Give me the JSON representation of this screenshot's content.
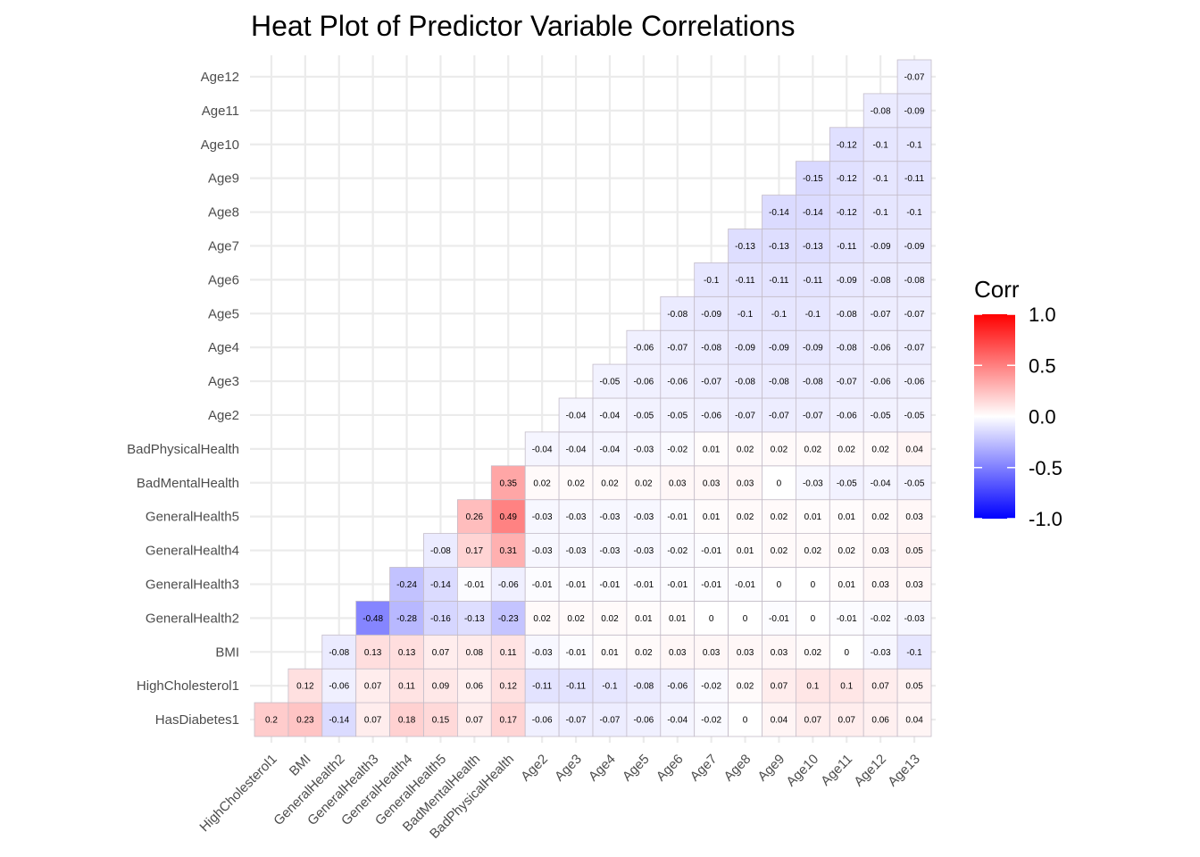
{
  "chart_data": {
    "type": "heatmap",
    "title": "Heat Plot of Predictor Variable Correlations",
    "x_categories": [
      "HighCholesterol1",
      "BMI",
      "GeneralHealth2",
      "GeneralHealth3",
      "GeneralHealth4",
      "GeneralHealth5",
      "BadMentalHealth",
      "BadPhysicalHealth",
      "Age2",
      "Age3",
      "Age4",
      "Age5",
      "Age6",
      "Age7",
      "Age8",
      "Age9",
      "Age10",
      "Age11",
      "Age12",
      "Age13"
    ],
    "y_categories": [
      "HasDiabetes1",
      "HighCholesterol1",
      "BMI",
      "GeneralHealth2",
      "GeneralHealth3",
      "GeneralHealth4",
      "GeneralHealth5",
      "BadMentalHealth",
      "BadPhysicalHealth",
      "Age2",
      "Age3",
      "Age4",
      "Age5",
      "Age6",
      "Age7",
      "Age8",
      "Age9",
      "Age10",
      "Age11",
      "Age12"
    ],
    "values": [
      [
        0.2,
        0.23,
        -0.14,
        0.07,
        0.18,
        0.15,
        0.07,
        0.17,
        -0.06,
        -0.07,
        -0.07,
        -0.06,
        -0.04,
        -0.02,
        0,
        0.04,
        0.07,
        0.07,
        0.06,
        0.04
      ],
      [
        null,
        0.12,
        -0.06,
        0.07,
        0.11,
        0.09,
        0.06,
        0.12,
        -0.11,
        -0.11,
        -0.1,
        -0.08,
        -0.06,
        -0.02,
        0.02,
        0.07,
        0.1,
        0.1,
        0.07,
        0.05
      ],
      [
        null,
        null,
        -0.08,
        0.13,
        0.13,
        0.07,
        0.08,
        0.11,
        -0.03,
        -0.01,
        0.01,
        0.02,
        0.03,
        0.03,
        0.03,
        0.03,
        0.02,
        0,
        -0.03,
        -0.1
      ],
      [
        null,
        null,
        null,
        -0.48,
        -0.28,
        -0.16,
        -0.13,
        -0.23,
        0.02,
        0.02,
        0.02,
        0.01,
        0.01,
        0,
        0,
        -0.01,
        0,
        -0.01,
        -0.02,
        -0.03
      ],
      [
        null,
        null,
        null,
        null,
        -0.24,
        -0.14,
        -0.01,
        -0.06,
        -0.01,
        -0.01,
        -0.01,
        -0.01,
        -0.01,
        -0.01,
        -0.01,
        0,
        0,
        0.01,
        0.03,
        0.03
      ],
      [
        null,
        null,
        null,
        null,
        null,
        -0.08,
        0.17,
        0.31,
        -0.03,
        -0.03,
        -0.03,
        -0.03,
        -0.02,
        -0.01,
        0.01,
        0.02,
        0.02,
        0.02,
        0.03,
        0.05
      ],
      [
        null,
        null,
        null,
        null,
        null,
        null,
        0.26,
        0.49,
        -0.03,
        -0.03,
        -0.03,
        -0.03,
        -0.01,
        0.01,
        0.02,
        0.02,
        0.01,
        0.01,
        0.02,
        0.03
      ],
      [
        null,
        null,
        null,
        null,
        null,
        null,
        null,
        0.35,
        0.02,
        0.02,
        0.02,
        0.02,
        0.03,
        0.03,
        0.03,
        0,
        -0.03,
        -0.05,
        -0.04,
        -0.05
      ],
      [
        null,
        null,
        null,
        null,
        null,
        null,
        null,
        null,
        -0.04,
        -0.04,
        -0.04,
        -0.03,
        -0.02,
        0.01,
        0.02,
        0.02,
        0.02,
        0.02,
        0.02,
        0.04
      ],
      [
        null,
        null,
        null,
        null,
        null,
        null,
        null,
        null,
        null,
        -0.04,
        -0.04,
        -0.05,
        -0.05,
        -0.06,
        -0.07,
        -0.07,
        -0.07,
        -0.06,
        -0.05,
        -0.05
      ],
      [
        null,
        null,
        null,
        null,
        null,
        null,
        null,
        null,
        null,
        null,
        -0.05,
        -0.06,
        -0.06,
        -0.07,
        -0.08,
        -0.08,
        -0.08,
        -0.07,
        -0.06,
        -0.06
      ],
      [
        null,
        null,
        null,
        null,
        null,
        null,
        null,
        null,
        null,
        null,
        null,
        -0.06,
        -0.07,
        -0.08,
        -0.09,
        -0.09,
        -0.09,
        -0.08,
        -0.06,
        -0.07
      ],
      [
        null,
        null,
        null,
        null,
        null,
        null,
        null,
        null,
        null,
        null,
        null,
        null,
        -0.08,
        -0.09,
        -0.1,
        -0.1,
        -0.1,
        -0.08,
        -0.07,
        -0.07
      ],
      [
        null,
        null,
        null,
        null,
        null,
        null,
        null,
        null,
        null,
        null,
        null,
        null,
        null,
        -0.1,
        -0.11,
        -0.11,
        -0.11,
        -0.09,
        -0.08,
        -0.08
      ],
      [
        null,
        null,
        null,
        null,
        null,
        null,
        null,
        null,
        null,
        null,
        null,
        null,
        null,
        null,
        -0.13,
        -0.13,
        -0.13,
        -0.11,
        -0.09,
        -0.09
      ],
      [
        null,
        null,
        null,
        null,
        null,
        null,
        null,
        null,
        null,
        null,
        null,
        null,
        null,
        null,
        null,
        -0.14,
        -0.14,
        -0.12,
        -0.1,
        -0.1
      ],
      [
        null,
        null,
        null,
        null,
        null,
        null,
        null,
        null,
        null,
        null,
        null,
        null,
        null,
        null,
        null,
        null,
        -0.15,
        -0.12,
        -0.1,
        -0.11
      ],
      [
        null,
        null,
        null,
        null,
        null,
        null,
        null,
        null,
        null,
        null,
        null,
        null,
        null,
        null,
        null,
        null,
        null,
        -0.12,
        -0.1,
        -0.1
      ],
      [
        null,
        null,
        null,
        null,
        null,
        null,
        null,
        null,
        null,
        null,
        null,
        null,
        null,
        null,
        null,
        null,
        null,
        null,
        -0.08,
        -0.09
      ],
      [
        null,
        null,
        null,
        null,
        null,
        null,
        null,
        null,
        null,
        null,
        null,
        null,
        null,
        null,
        null,
        null,
        null,
        null,
        null,
        -0.07
      ]
    ],
    "legend": {
      "title": "Corr",
      "placement": "right",
      "range": [
        -1,
        1
      ],
      "ticks": [
        "1.0",
        "0.5",
        "0.0",
        "-0.5",
        "-1.0"
      ],
      "tick_values": [
        1,
        0.5,
        0,
        -0.5,
        -1
      ],
      "colors": {
        "low": "#0000ff",
        "mid": "#ffffff",
        "high": "#ff0000"
      }
    },
    "grid": true,
    "grid_color": "#ebebeb",
    "cell_border_color": "#c4bcc8"
  }
}
